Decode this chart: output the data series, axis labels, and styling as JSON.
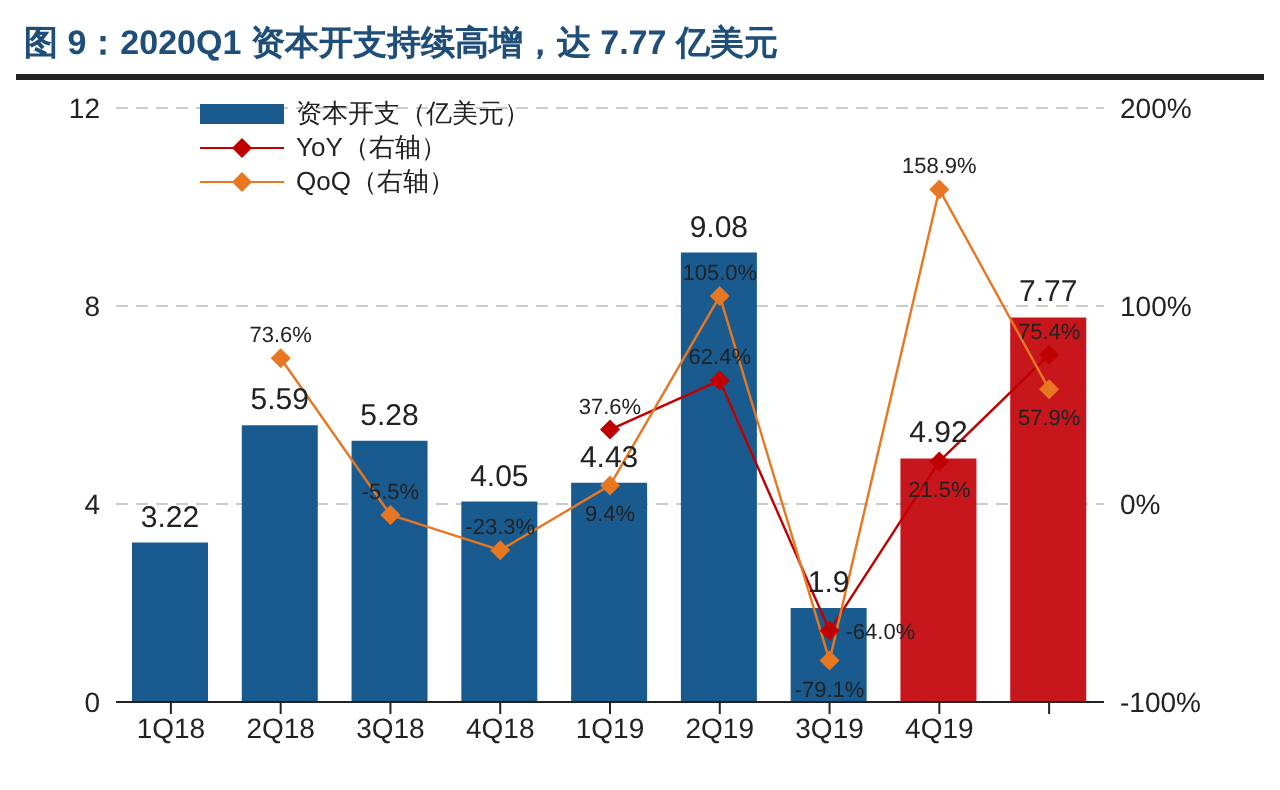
{
  "chart_data": {
    "type": "bar",
    "title": "图 9：2020Q1 资本开支持续高增，达 7.77 亿美元",
    "categories": [
      "1Q18",
      "2Q18",
      "3Q18",
      "4Q18",
      "1Q19",
      "2Q19",
      "3Q19",
      "4Q19",
      null
    ],
    "series": [
      {
        "name": "资本开支（亿美元）",
        "color": "#1a5b8f",
        "colors": [
          "#1a5b8f",
          "#1a5b8f",
          "#1a5b8f",
          "#1a5b8f",
          "#1a5b8f",
          "#1a5b8f",
          "#1a5b8f",
          "#c8161d",
          "#c8161d"
        ],
        "values": [
          3.22,
          5.59,
          5.28,
          4.05,
          4.43,
          9.08,
          1.9,
          4.92,
          7.77
        ],
        "value_labels": [
          "3.22",
          "5.59",
          "5.28",
          "4.05",
          "4.43",
          "9.08",
          "1.9",
          "4.92",
          "7.77"
        ]
      },
      {
        "name": "YoY（右轴）",
        "type": "line",
        "axis": "y2",
        "color": "#c00000",
        "values": [
          null,
          null,
          null,
          null,
          37.6,
          62.4,
          -64.0,
          21.5,
          75.4
        ],
        "value_labels": [
          null,
          null,
          null,
          null,
          "37.6%",
          "62.4%",
          "-64.0%",
          "21.5%",
          "75.4%"
        ]
      },
      {
        "name": "QoQ（右轴）",
        "type": "line",
        "axis": "y2",
        "color": "#e87722",
        "values": [
          null,
          73.6,
          -5.5,
          -23.3,
          9.4,
          105.0,
          -79.1,
          158.9,
          57.9
        ],
        "value_labels": [
          null,
          "73.6%",
          "-5.5%",
          "-23.3%",
          "9.4%",
          "105.0%",
          "-79.1%",
          "158.9%",
          "57.9%"
        ]
      }
    ],
    "ylim": [
      0,
      12
    ],
    "yticks": [
      0,
      4,
      8,
      12
    ],
    "y2lim": [
      -100,
      200
    ],
    "y2ticks": [
      {
        "value": -100,
        "label": "-100%"
      },
      {
        "value": 0,
        "label": "0%"
      },
      {
        "value": 100,
        "label": "100%"
      },
      {
        "value": 200,
        "label": "200%"
      }
    ],
    "grid": "y",
    "legend": "top left",
    "marker": "diamond"
  }
}
